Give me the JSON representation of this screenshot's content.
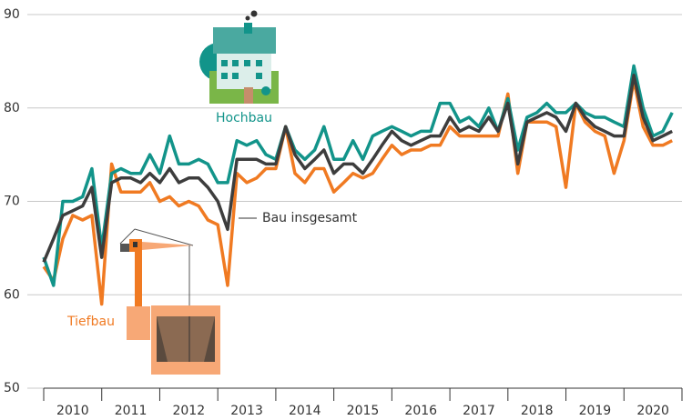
{
  "chart_data": {
    "type": "line",
    "categories": [
      "2010",
      "2011",
      "2012",
      "2013",
      "2014",
      "2015",
      "2016",
      "2017",
      "2018",
      "2019",
      "2020"
    ],
    "x": [
      2010,
      2010.17,
      2010.33,
      2010.5,
      2010.67,
      2010.83,
      2011,
      2011.17,
      2011.33,
      2011.5,
      2011.67,
      2011.83,
      2012,
      2012.17,
      2012.33,
      2012.5,
      2012.67,
      2012.83,
      2013,
      2013.17,
      2013.33,
      2013.5,
      2013.67,
      2013.83,
      2014,
      2014.17,
      2014.33,
      2014.5,
      2014.67,
      2014.83,
      2015,
      2015.17,
      2015.33,
      2015.5,
      2015.67,
      2015.83,
      2016,
      2016.17,
      2016.33,
      2016.5,
      2016.67,
      2016.83,
      2017,
      2017.17,
      2017.33,
      2017.5,
      2017.67,
      2017.83,
      2018,
      2018.17,
      2018.33,
      2018.5,
      2018.67,
      2018.83,
      2019,
      2019.17,
      2019.33,
      2019.5,
      2019.67,
      2019.83,
      2020,
      2020.17,
      2020.33,
      2020.5,
      2020.67,
      2020.83
    ],
    "series": [
      {
        "name": "Hochbau",
        "color": "#12948a",
        "values": [
          64,
          61,
          70,
          70,
          70.5,
          73.5,
          65,
          73,
          73.5,
          73,
          73,
          75,
          73,
          77,
          74,
          74,
          74.5,
          74,
          72,
          72,
          76.5,
          76,
          76.5,
          75,
          74.5,
          78,
          75.5,
          74.5,
          75.5,
          78,
          74.5,
          74.5,
          76.5,
          74.5,
          77,
          77.5,
          78,
          77.5,
          77,
          77.5,
          77.5,
          80.5,
          80.5,
          78.5,
          79,
          78,
          80,
          77.5,
          81,
          75.5,
          79,
          79.5,
          80.5,
          79.5,
          79.5,
          80.5,
          79.5,
          79,
          79,
          78.5,
          78,
          84.5,
          80,
          77,
          77.5,
          79.5
        ]
      },
      {
        "name": "Bau insgesamt",
        "color": "#3d3d3d",
        "values": [
          63.5,
          66,
          68.5,
          69,
          69.5,
          71.5,
          64,
          72,
          72.5,
          72.5,
          72,
          73,
          72,
          73.5,
          72,
          72.5,
          72.5,
          71.5,
          70,
          67,
          74.5,
          74.5,
          74.5,
          74,
          74,
          78,
          75,
          73.5,
          74.5,
          75.5,
          73,
          74,
          74,
          73,
          74.5,
          76,
          77.5,
          76.5,
          76,
          76.5,
          77,
          77,
          79,
          77.5,
          78,
          77.5,
          79,
          77.5,
          80.5,
          74,
          78.5,
          79,
          79.5,
          79,
          77.5,
          80.5,
          79,
          78,
          77.5,
          77,
          77,
          83.5,
          79,
          76.5,
          77,
          77.5
        ]
      },
      {
        "name": "Tiefbau",
        "color": "#f07a22",
        "values": [
          63,
          61.5,
          66,
          68.5,
          68,
          68.5,
          59,
          74,
          71,
          71,
          71,
          72,
          70,
          70.5,
          69.5,
          70,
          69.5,
          68,
          67.5,
          61,
          73,
          72,
          72.5,
          73.5,
          73.5,
          78,
          73,
          72,
          73.5,
          73.5,
          71,
          72,
          73,
          72.5,
          73,
          74.5,
          76,
          75,
          75.5,
          75.5,
          76,
          76,
          78,
          77,
          77,
          77,
          77,
          77,
          81.5,
          73,
          78.5,
          78.5,
          78.5,
          78,
          71.5,
          80.5,
          78.5,
          77.5,
          77,
          73,
          76.5,
          83,
          78,
          76,
          76,
          76.5
        ]
      }
    ],
    "xlim": [
      2010,
      2021
    ],
    "xticks": [
      2010,
      2011,
      2012,
      2013,
      2014,
      2015,
      2016,
      2017,
      2018,
      2019,
      2020,
      2021
    ],
    "ylim": [
      50,
      90
    ],
    "yticks": [
      50,
      60,
      70,
      80,
      90
    ],
    "grid": true
  }
}
